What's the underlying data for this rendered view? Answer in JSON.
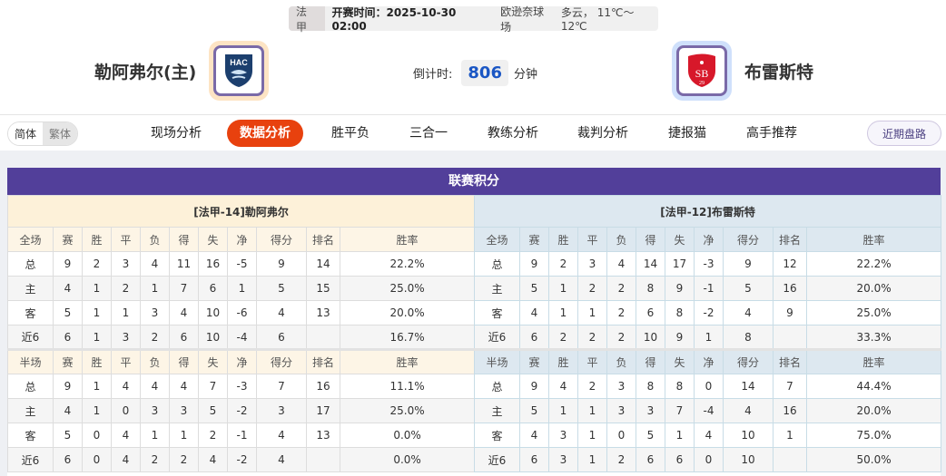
{
  "match": {
    "league": "法甲",
    "kickoff": "开赛时间：2025-10-30 02:00",
    "venue": "欧逊奈球场",
    "weather": "多云， 11℃～12℃"
  },
  "home": {
    "name": "勒阿弗尔(主)",
    "logo_text": "HAC",
    "logo_color": "#1c3f6e"
  },
  "away": {
    "name": "布雷斯特",
    "logo_text": "SB29",
    "logo_color": "#d7182a"
  },
  "countdown": {
    "label": "倒计时:",
    "value": "806",
    "unit": "分钟"
  },
  "lang": {
    "simplified": "简体",
    "traditional": "繁体"
  },
  "nav": [
    {
      "label": "现场分析"
    },
    {
      "label": "数据分析",
      "active": true
    },
    {
      "label": "胜平负"
    },
    {
      "label": "三合一"
    },
    {
      "label": "教练分析"
    },
    {
      "label": "裁判分析"
    },
    {
      "label": "捷报猫"
    },
    {
      "label": "高手推荐"
    }
  ],
  "recent_button": "近期盘路",
  "standings": {
    "title": "联赛积分",
    "headers_full": [
      "全场",
      "赛",
      "胜",
      "平",
      "负",
      "得",
      "失",
      "净",
      "得分",
      "排名",
      "胜率"
    ],
    "headers_half": [
      "半场",
      "赛",
      "胜",
      "平",
      "负",
      "得",
      "失",
      "净",
      "得分",
      "排名",
      "胜率"
    ],
    "home": {
      "title": "[法甲-14]勒阿弗尔",
      "full": [
        [
          "总",
          "9",
          "2",
          "3",
          "4",
          "11",
          "16",
          "-5",
          "9",
          "14",
          "22.2%"
        ],
        [
          "主",
          "4",
          "1",
          "2",
          "1",
          "7",
          "6",
          "1",
          "5",
          "15",
          "25.0%"
        ],
        [
          "客",
          "5",
          "1",
          "1",
          "3",
          "4",
          "10",
          "-6",
          "4",
          "13",
          "20.0%"
        ],
        [
          "近6",
          "6",
          "1",
          "3",
          "2",
          "6",
          "10",
          "-4",
          "6",
          "",
          "16.7%"
        ]
      ],
      "half": [
        [
          "总",
          "9",
          "1",
          "4",
          "4",
          "4",
          "7",
          "-3",
          "7",
          "16",
          "11.1%"
        ],
        [
          "主",
          "4",
          "1",
          "0",
          "3",
          "3",
          "5",
          "-2",
          "3",
          "17",
          "25.0%"
        ],
        [
          "客",
          "5",
          "0",
          "4",
          "1",
          "1",
          "2",
          "-1",
          "4",
          "13",
          "0.0%"
        ],
        [
          "近6",
          "6",
          "0",
          "4",
          "2",
          "2",
          "4",
          "-2",
          "4",
          "",
          "0.0%"
        ]
      ]
    },
    "away": {
      "title": "[法甲-12]布雷斯特",
      "full": [
        [
          "总",
          "9",
          "2",
          "3",
          "4",
          "14",
          "17",
          "-3",
          "9",
          "12",
          "22.2%"
        ],
        [
          "主",
          "5",
          "1",
          "2",
          "2",
          "8",
          "9",
          "-1",
          "5",
          "16",
          "20.0%"
        ],
        [
          "客",
          "4",
          "1",
          "1",
          "2",
          "6",
          "8",
          "-2",
          "4",
          "9",
          "25.0%"
        ],
        [
          "近6",
          "6",
          "2",
          "2",
          "2",
          "10",
          "9",
          "1",
          "8",
          "",
          "33.3%"
        ]
      ],
      "half": [
        [
          "总",
          "9",
          "4",
          "2",
          "3",
          "8",
          "8",
          "0",
          "14",
          "7",
          "44.4%"
        ],
        [
          "主",
          "5",
          "1",
          "1",
          "3",
          "3",
          "7",
          "-4",
          "4",
          "16",
          "20.0%"
        ],
        [
          "客",
          "4",
          "3",
          "1",
          "0",
          "5",
          "1",
          "4",
          "10",
          "1",
          "75.0%"
        ],
        [
          "近6",
          "6",
          "3",
          "1",
          "2",
          "6",
          "6",
          "0",
          "10",
          "",
          "50.0%"
        ]
      ]
    }
  },
  "colors": {
    "title_bar": "#523f9a",
    "active_tab": "#e8410e",
    "home_label": "#dd0000",
    "away_label": "#0033cc",
    "countdown": "#1a56c4"
  }
}
